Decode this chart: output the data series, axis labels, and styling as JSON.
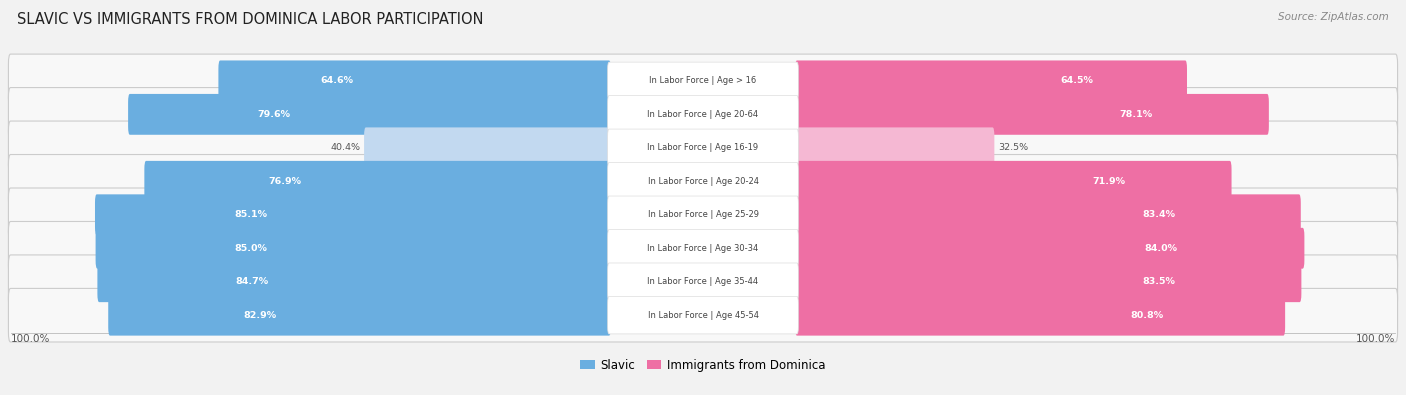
{
  "title": "SLAVIC VS IMMIGRANTS FROM DOMINICA LABOR PARTICIPATION",
  "source": "Source: ZipAtlas.com",
  "categories": [
    "In Labor Force | Age > 16",
    "In Labor Force | Age 20-64",
    "In Labor Force | Age 16-19",
    "In Labor Force | Age 20-24",
    "In Labor Force | Age 25-29",
    "In Labor Force | Age 30-34",
    "In Labor Force | Age 35-44",
    "In Labor Force | Age 45-54"
  ],
  "slavic_values": [
    64.6,
    79.6,
    40.4,
    76.9,
    85.1,
    85.0,
    84.7,
    82.9
  ],
  "dominica_values": [
    64.5,
    78.1,
    32.5,
    71.9,
    83.4,
    84.0,
    83.5,
    80.8
  ],
  "slavic_color": "#6aaee0",
  "slavic_color_light": "#c2d9f0",
  "dominica_color": "#ee6fa4",
  "dominica_color_light": "#f5b8d3",
  "bg_color": "#f2f2f2",
  "row_bg_color": "#e2e2e2",
  "row_inner_color": "#f8f8f8",
  "label_white": "#ffffff",
  "label_dark": "#555555",
  "center_label_color": "#444444",
  "legend_slavic": "Slavic",
  "legend_dominica": "Immigrants from Dominica",
  "bottom_label": "100.0%"
}
